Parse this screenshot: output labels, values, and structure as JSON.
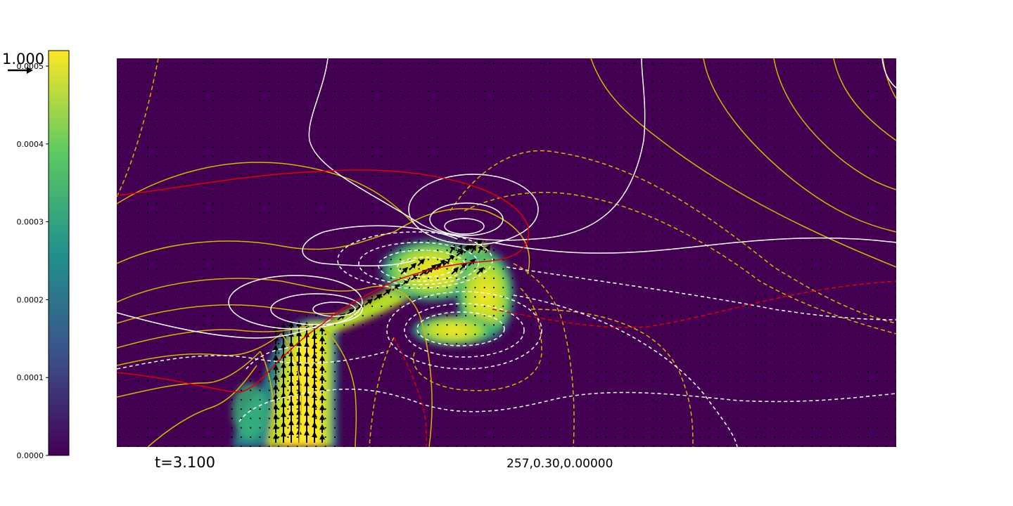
{
  "chart_data": {
    "type": "heatmap",
    "title": "",
    "xlabel": "",
    "ylabel": "",
    "colormap": "viridis",
    "colorbar": {
      "min": 0.0,
      "max": 0.0005,
      "ticks": [
        {
          "value": 0.0,
          "label": "0.0000"
        },
        {
          "value": 0.0001,
          "label": "0.0001"
        },
        {
          "value": 0.0002,
          "label": "0.0002"
        },
        {
          "value": 0.0003,
          "label": "0.0003"
        },
        {
          "value": 0.0004,
          "label": "0.0004"
        },
        {
          "value": 0.0005,
          "label": "0.0005"
        }
      ],
      "stops": [
        "#440154",
        "#3b528b",
        "#21918c",
        "#5ec962",
        "#fde725"
      ]
    },
    "quiver_key": {
      "label": "1.000"
    },
    "annotations": {
      "time": "t=3.100",
      "params": "257,0.30,0.00000"
    },
    "background_value": 3e-05,
    "contour_colors": {
      "white": "#ffffff",
      "yellow": "#d8b400",
      "red": "#e00000"
    },
    "grid": false,
    "legend": "none"
  }
}
